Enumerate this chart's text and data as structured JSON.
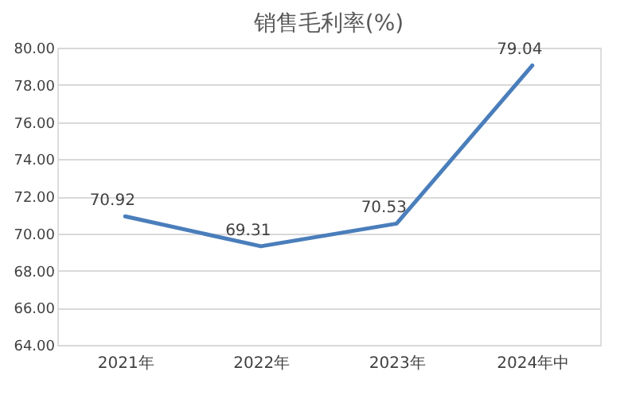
{
  "chart_data": {
    "type": "line",
    "title": "销售毛利率(%)",
    "categories": [
      "2021年",
      "2022年",
      "2023年",
      "2024年中"
    ],
    "series": [
      {
        "color": "#4a7ebb",
        "values": [
          70.92,
          69.31,
          70.53,
          79.04
        ]
      }
    ],
    "ylim": [
      64,
      80
    ],
    "yticks": [
      {
        "value": 64,
        "label": "64.00"
      },
      {
        "value": 66,
        "label": "66.00"
      },
      {
        "value": 68,
        "label": "68.00"
      },
      {
        "value": 70,
        "label": "70.00"
      },
      {
        "value": 72,
        "label": "72.00"
      },
      {
        "value": 74,
        "label": "74.00"
      },
      {
        "value": 76,
        "label": "76.00"
      },
      {
        "value": 78,
        "label": "78.00"
      },
      {
        "value": 80,
        "label": "80.00"
      }
    ],
    "grid": "y",
    "data_labels": true,
    "legend": false,
    "marker": "none",
    "line_style": "solid"
  }
}
